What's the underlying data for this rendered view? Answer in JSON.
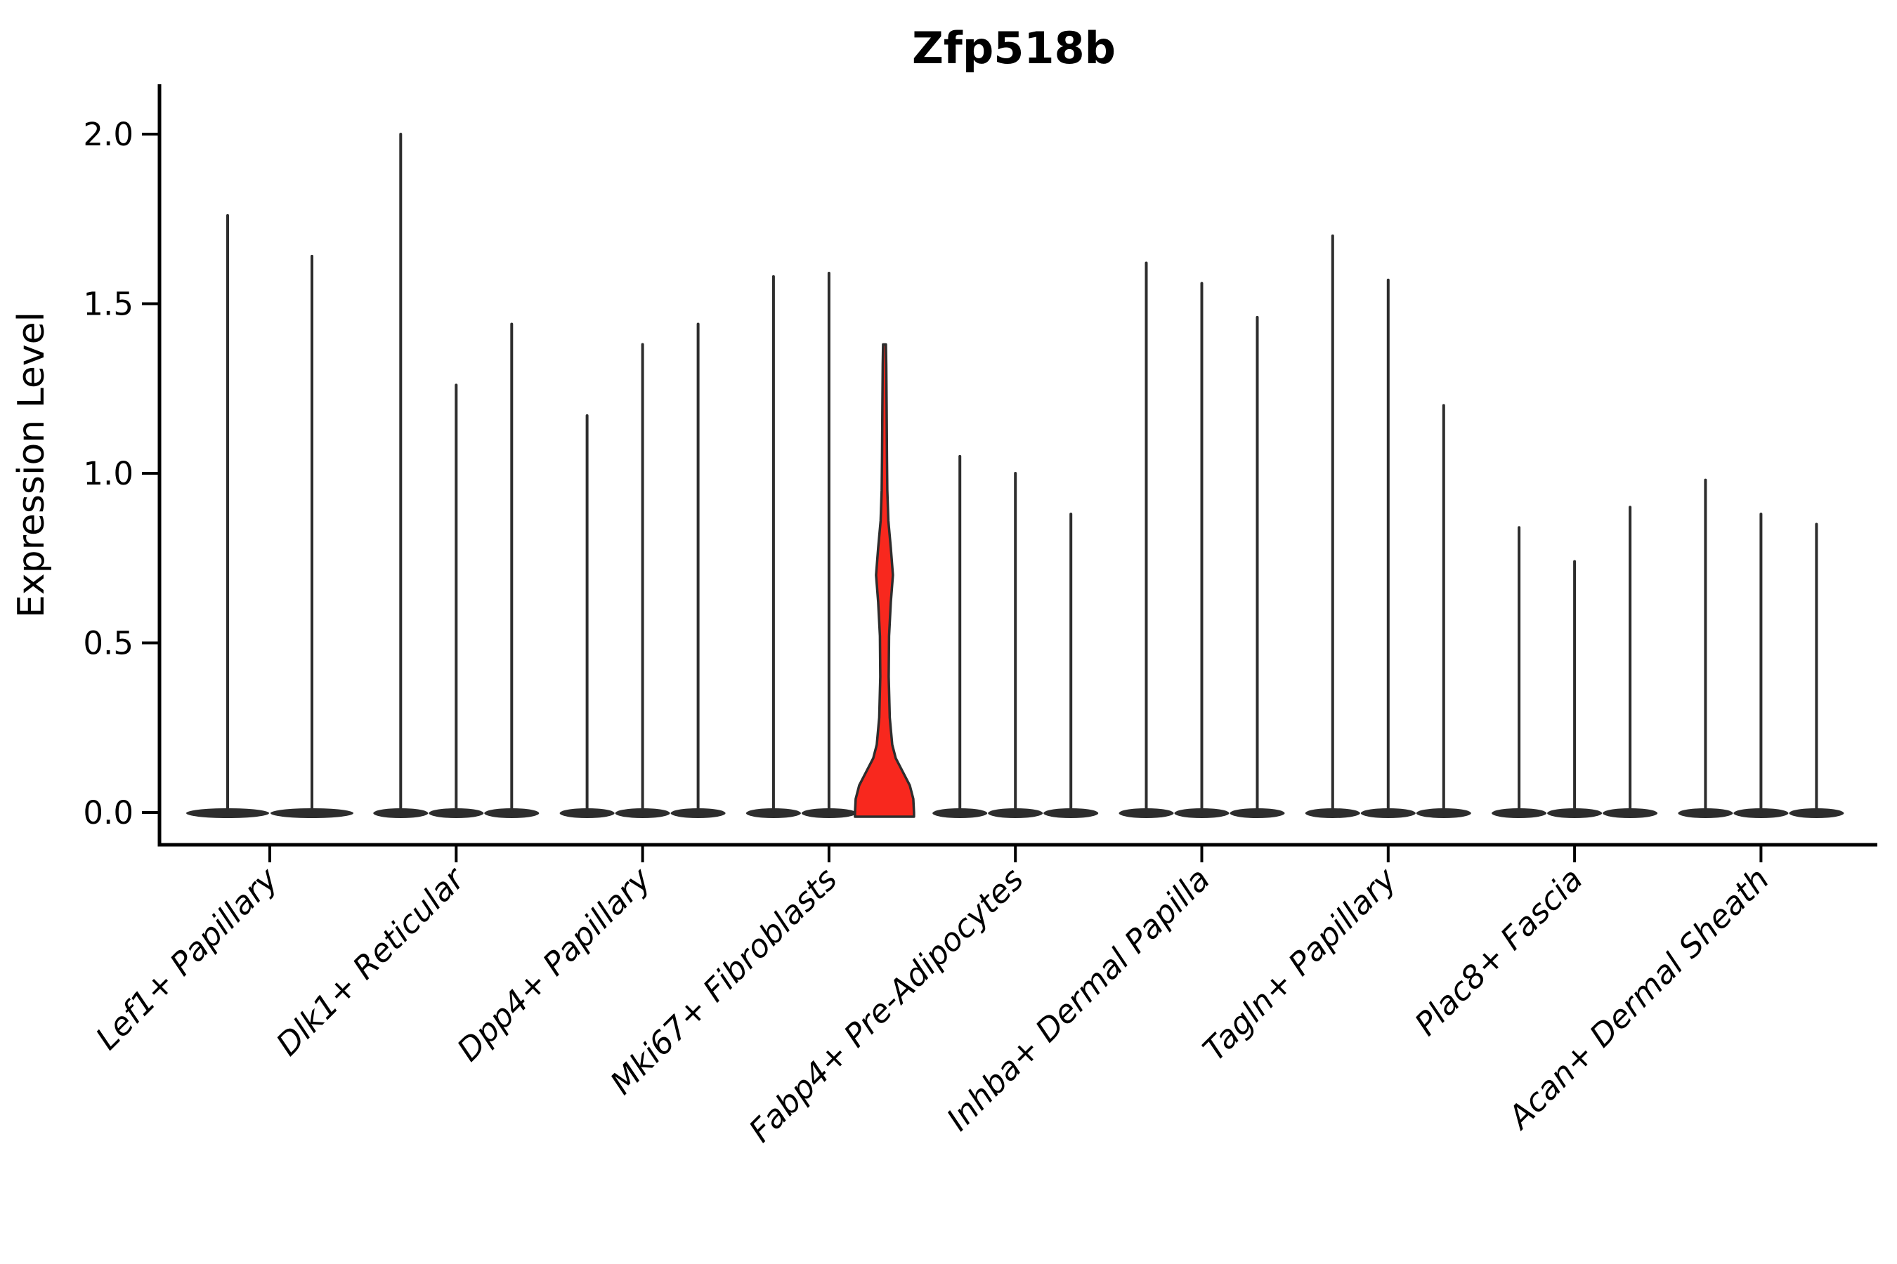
{
  "chart_data": {
    "type": "violin",
    "title": "Zfp518b",
    "ylabel": "Expression Level",
    "xlabel": "",
    "grid": false,
    "legend_position": "none",
    "ylim": [
      -0.1,
      2.11
    ],
    "yticks": [
      0.0,
      0.5,
      1.0,
      1.5,
      2.0
    ],
    "ytick_labels": [
      "0.0",
      "0.5",
      "1.0",
      "1.5",
      "2.0"
    ],
    "categories": [
      "Lef1+ Papillary",
      "Dlk1+ Reticular",
      "Dpp4+ Papillary",
      "Mki67+ Fibroblasts",
      "Fabp4+ Pre-Adipocytes",
      "Inhba+ Dermal Papilla",
      "Tagln+ Papillary",
      "Plac8+ Fascia",
      "Acan+ Dermal Sheath"
    ],
    "series": [
      {
        "category": "Lef1+ Papillary",
        "violin_max_values": [
          1.76,
          1.64
        ]
      },
      {
        "category": "Dlk1+ Reticular",
        "violin_max_values": [
          2.0,
          1.26,
          1.44
        ]
      },
      {
        "category": "Dpp4+ Papillary",
        "violin_max_values": [
          1.17,
          1.38,
          1.44
        ]
      },
      {
        "category": "Mki67+ Fibroblasts",
        "violin_max_values": [
          1.58,
          1.59,
          1.38
        ]
      },
      {
        "category": "Fabp4+ Pre-Adipocytes",
        "violin_max_values": [
          1.05,
          1.0,
          0.88
        ]
      },
      {
        "category": "Inhba+ Dermal Papilla",
        "violin_max_values": [
          1.62,
          1.56,
          1.46
        ]
      },
      {
        "category": "Tagln+ Papillary",
        "violin_max_values": [
          1.7,
          1.57,
          1.2
        ]
      },
      {
        "category": "Plac8+ Fascia",
        "violin_max_values": [
          0.84,
          0.74,
          0.9
        ]
      },
      {
        "category": "Acan+ Dermal Sheath",
        "violin_max_values": [
          0.98,
          0.88,
          0.85
        ]
      }
    ],
    "highlight": {
      "category": "Mki67+ Fibroblasts",
      "violin_index": 2,
      "max_value": 1.38,
      "bulge_center_value": 0.7,
      "fill": "#f8281e",
      "profile_value_halfwidth": [
        [
          1.38,
          2.0
        ],
        [
          1.32,
          2.5
        ],
        [
          1.2,
          3.0
        ],
        [
          1.05,
          3.5
        ],
        [
          0.95,
          4.0
        ],
        [
          0.86,
          5.5
        ],
        [
          0.78,
          9.0
        ],
        [
          0.7,
          12.0
        ],
        [
          0.62,
          9.0
        ],
        [
          0.52,
          6.5
        ],
        [
          0.4,
          6.0
        ],
        [
          0.28,
          7.5
        ],
        [
          0.2,
          11.0
        ],
        [
          0.16,
          16.0
        ],
        [
          0.12,
          26.0
        ],
        [
          0.08,
          36.0
        ],
        [
          0.04,
          41.0
        ],
        [
          0.0,
          42.0
        ]
      ]
    },
    "style": {
      "outline_color": "#2d2d2d",
      "axis_color": "#000000",
      "text_color": "#000000",
      "highlight_fill": "#f8281e",
      "background": "#ffffff"
    }
  },
  "layout_values": {
    "x_tick_rotation_deg": 45,
    "violins_per_group_default": 3
  }
}
